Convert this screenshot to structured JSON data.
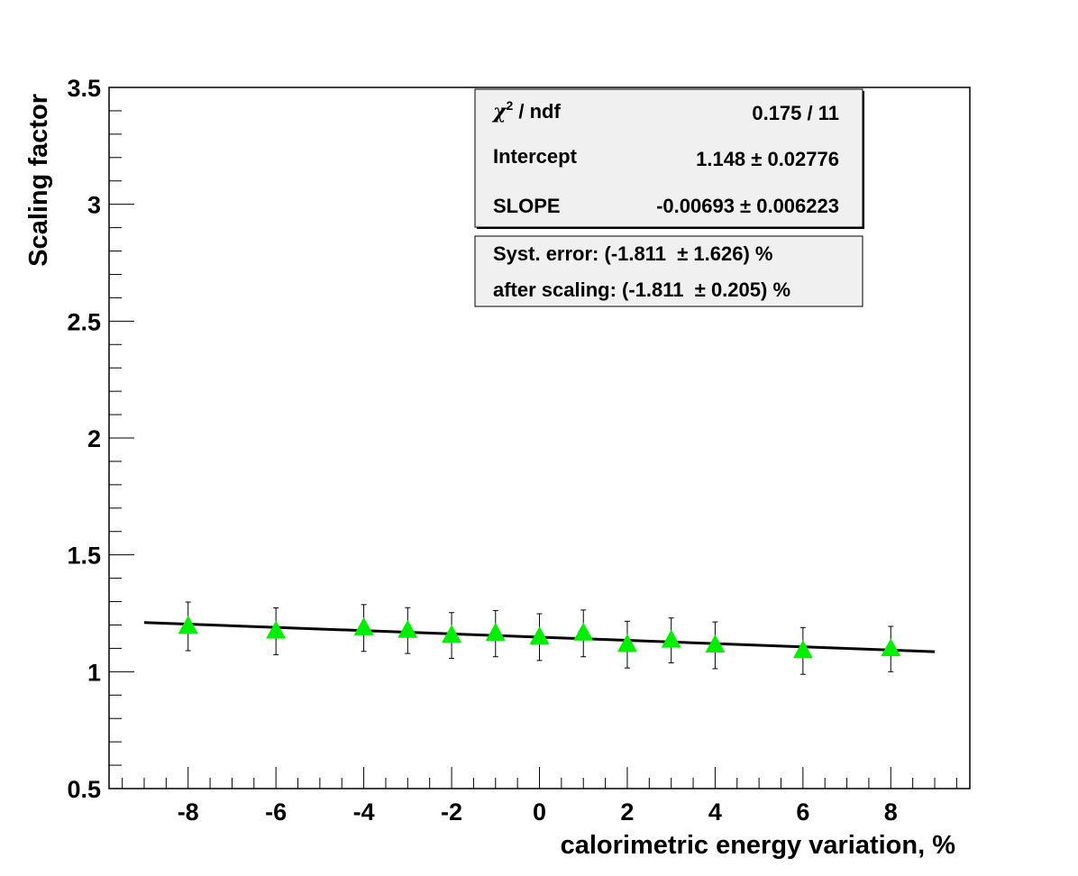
{
  "chart_data": {
    "type": "scatter",
    "xlabel": "calorimetric energy variation, %",
    "ylabel": "Scaling factor",
    "xlim": [
      -9.8,
      9.8
    ],
    "ylim": [
      0.5,
      3.5
    ],
    "xticks": [
      -8,
      -6,
      -4,
      -2,
      0,
      2,
      4,
      6,
      8
    ],
    "xtick_labels": [
      "-8",
      "-6",
      "-4",
      "-2",
      "0",
      "2",
      "4",
      "6",
      "8"
    ],
    "yticks": [
      0.5,
      1,
      1.5,
      2,
      2.5,
      3,
      3.5
    ],
    "ytick_labels": [
      "0.5",
      "1",
      "1.5",
      "2",
      "2.5",
      "3",
      "3.5"
    ],
    "grid": false,
    "marker_color": "#00ee00",
    "fit_color": "#000000",
    "series": [
      {
        "points": [
          {
            "x": -8,
            "y": 1.194,
            "err": 0.104
          },
          {
            "x": -6,
            "y": 1.173,
            "err": 0.1
          },
          {
            "x": -4,
            "y": 1.187,
            "err": 0.1
          },
          {
            "x": -3,
            "y": 1.176,
            "err": 0.098
          },
          {
            "x": -2,
            "y": 1.155,
            "err": 0.098
          },
          {
            "x": -1,
            "y": 1.163,
            "err": 0.099
          },
          {
            "x": 0,
            "y": 1.148,
            "err": 0.1
          },
          {
            "x": 1,
            "y": 1.164,
            "err": 0.1
          },
          {
            "x": 2,
            "y": 1.116,
            "err": 0.1
          },
          {
            "x": 3,
            "y": 1.134,
            "err": 0.096
          },
          {
            "x": 4,
            "y": 1.113,
            "err": 0.1
          },
          {
            "x": 6,
            "y": 1.089,
            "err": 0.1
          },
          {
            "x": 8,
            "y": 1.097,
            "err": 0.097
          }
        ]
      }
    ],
    "fit": {
      "intercept": 1.148,
      "slope": -0.00693,
      "x_range": [
        -9,
        9
      ]
    }
  },
  "stats_box": {
    "rows": [
      {
        "label": "χ² / ndf",
        "value": "0.175 / 11"
      },
      {
        "label": "Intercept",
        "value": "1.148 ± 0.02776"
      },
      {
        "label": "SLOPE",
        "value": "-0.00693 ± 0.006223"
      }
    ]
  },
  "syst_box": {
    "lines": [
      "Syst. error: (-1.811  ± 1.626) %",
      "after scaling: (-1.811  ± 0.205) %"
    ]
  }
}
